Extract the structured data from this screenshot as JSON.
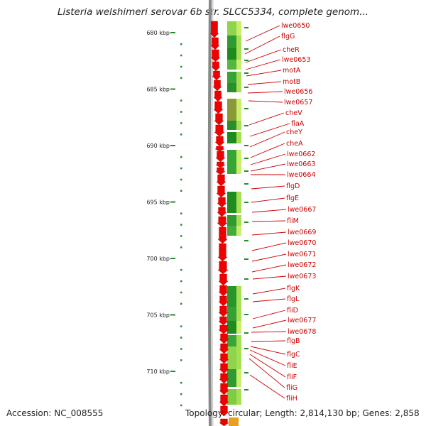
{
  "title": "Listeria welshimeri serovar 6b str. SLCC5334, complete genom...",
  "footer": {
    "accession": "Accession: NC_008555",
    "summary": "Topology: circular; Length: 2,814,130 bp; Genes: 2,858"
  },
  "colors": {
    "gene_arrow": "#ee0000",
    "backbone": "#888888",
    "tick": "#2a8a2a",
    "label": "#cc0000"
  },
  "ruler": {
    "labels": [
      "680 kbp",
      "685 kbp",
      "690 kbp",
      "695 kbp",
      "700 kbp",
      "705 kbp",
      "710 kbp"
    ],
    "major_kbp": [
      680,
      685,
      690,
      695,
      700,
      705,
      710
    ]
  },
  "genes": [
    "lwe0650",
    "flgG",
    "cheR",
    "lwe0653",
    "motA",
    "motB",
    "lwe0656",
    "lwe0657",
    "cheV",
    "flaA",
    "cheY",
    "cheA",
    "lwe0662",
    "lwe0663",
    "lwe0664",
    "flgD",
    "flgE",
    "lwe0667",
    "fliM",
    "lwe0669",
    "lwe0670",
    "lwe0671",
    "lwe0672",
    "lwe0673",
    "flgK",
    "flgL",
    "fliD",
    "lwe0677",
    "lwe0678",
    "flgB",
    "flgC",
    "fliE",
    "fliF",
    "fliG",
    "fliH"
  ]
}
